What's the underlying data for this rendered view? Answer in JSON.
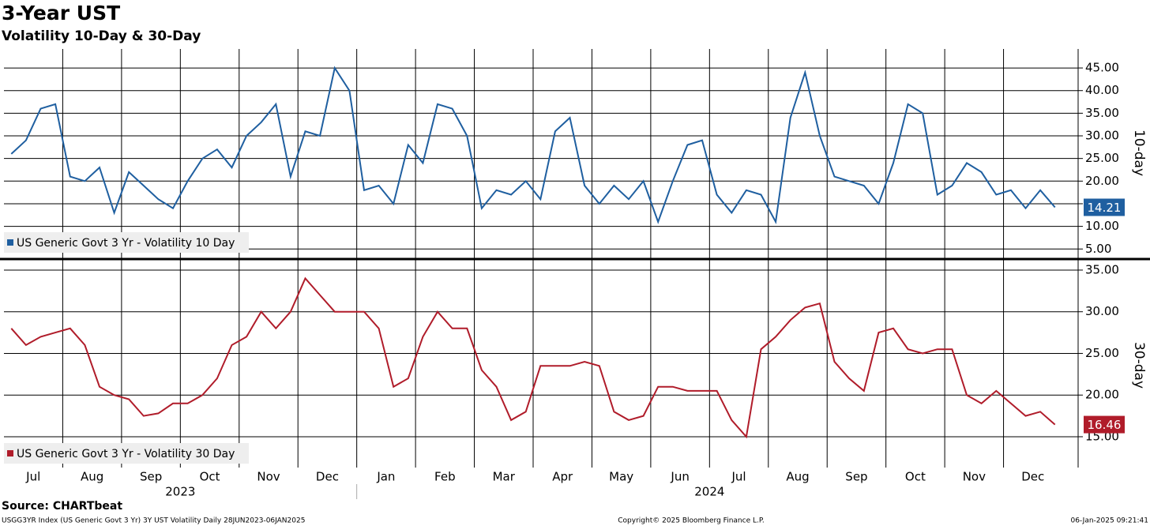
{
  "title": "3-Year UST",
  "subtitle": "Volatility 10-Day & 30-Day",
  "footer": {
    "source": "Source: CHARTbeat",
    "description": "USGG3YR Index (US Generic Govt 3 Yr) 3Y UST Volatility  Daily 28JUN2023-06JAN2025",
    "copyright": "Copyright© 2025 Bloomberg Finance L.P.",
    "timestamp": "06-Jan-2025 09:21:41"
  },
  "chart_data": {
    "type": "line",
    "categories": [
      "Jul",
      null,
      null,
      null,
      "Aug",
      null,
      null,
      null,
      "Sep",
      null,
      null,
      null,
      "Oct",
      null,
      null,
      null,
      "Nov",
      null,
      null,
      null,
      "Dec",
      null,
      null,
      null,
      "Jan",
      null,
      null,
      null,
      "Feb",
      null,
      null,
      null,
      "Mar",
      null,
      null,
      null,
      "Apr",
      null,
      null,
      null,
      "May",
      null,
      null,
      null,
      "Jun",
      null,
      null,
      null,
      "Jul",
      null,
      null,
      null,
      "Aug",
      null,
      null,
      null,
      "Sep",
      null,
      null,
      null,
      "Oct",
      null,
      null,
      null,
      "Nov",
      null,
      null,
      null,
      "Dec",
      null,
      null,
      null
    ],
    "years": [
      "2023",
      "2024"
    ],
    "grid": true,
    "panels": [
      {
        "axis_label": "10-day",
        "ylim": [
          3.3,
          49.2
        ],
        "yticks": [
          {
            "value": 5,
            "label": "5.00"
          },
          {
            "value": 10,
            "label": "10.00"
          },
          {
            "value": 15,
            "label": "15.00"
          },
          {
            "value": 20,
            "label": "20.00"
          },
          {
            "value": 25,
            "label": "25.00"
          },
          {
            "value": 30,
            "label": "30.00"
          },
          {
            "value": 35,
            "label": "35.00"
          },
          {
            "value": 40,
            "label": "40.00"
          },
          {
            "value": 45,
            "label": "45.00"
          }
        ],
        "series": [
          {
            "name": "US Generic Govt 3 Yr - Volatility 10 Day",
            "color": "#1f5fa0",
            "values": [
              26,
              29,
              36,
              37,
              21,
              20,
              23,
              13,
              22,
              19,
              16,
              14,
              20,
              25,
              27,
              23,
              30,
              33,
              37,
              21,
              31,
              30,
              45,
              40,
              18,
              19,
              15,
              28,
              24,
              37,
              36,
              30,
              14,
              18,
              17,
              20,
              16,
              31,
              34,
              19,
              15,
              19,
              16,
              20,
              11,
              20,
              28,
              29,
              17,
              13,
              18,
              17,
              11,
              34,
              44,
              30,
              21,
              20,
              19,
              15,
              24,
              37,
              35,
              17,
              19,
              24,
              22,
              17,
              18,
              14,
              18,
              14.21
            ]
          }
        ]
      },
      {
        "axis_label": "30-day",
        "ylim": [
          11.3,
          35.85
        ],
        "yticks": [
          {
            "value": 15,
            "label": "15.00"
          },
          {
            "value": 20,
            "label": "20.00"
          },
          {
            "value": 25,
            "label": "25.00"
          },
          {
            "value": 30,
            "label": "30.00"
          },
          {
            "value": 35,
            "label": "35.00"
          }
        ],
        "series": [
          {
            "name": "US Generic Govt 3 Yr - Volatility 30 Day",
            "color": "#b01c2a",
            "values": [
              28,
              26,
              27,
              27.5,
              28,
              26,
              21,
              20,
              19.5,
              17.5,
              17.8,
              19,
              19,
              20,
              22,
              26,
              27,
              30,
              28,
              30,
              34,
              32,
              30,
              30,
              30,
              28,
              21,
              22,
              27,
              30,
              28,
              28,
              23,
              21,
              17,
              18,
              23.5,
              23.5,
              23.5,
              24,
              23.5,
              18,
              17,
              17.5,
              21,
              21,
              20.5,
              20.5,
              20.5,
              17,
              15,
              25.5,
              27,
              29,
              30.5,
              31,
              24,
              22,
              20.5,
              27.5,
              28,
              25.5,
              25,
              25.5,
              25.5,
              20,
              19,
              20.5,
              19,
              17.5,
              18,
              16.46
            ]
          }
        ]
      }
    ]
  }
}
